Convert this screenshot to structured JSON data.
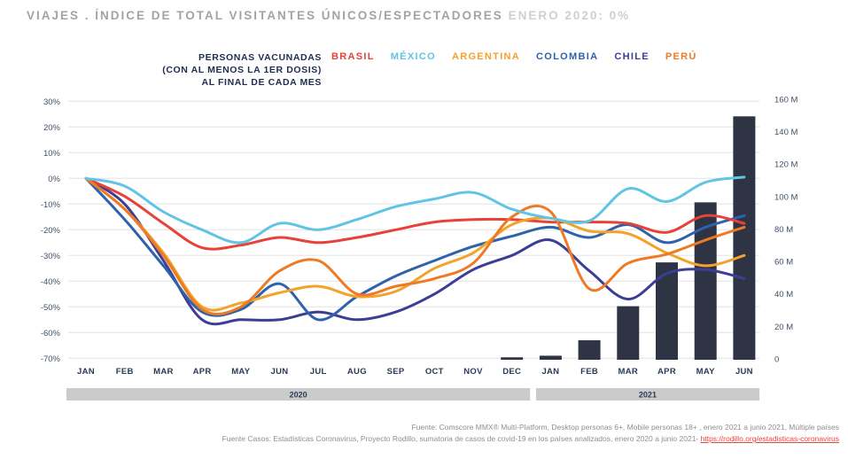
{
  "title": {
    "main": "VIAJES . ÍNDICE DE TOTAL VISITANTES ÚNICOS/ESPECTADORES",
    "suffix": "ENERO 2020: 0%"
  },
  "legend": {
    "vaccinated_label_lines": [
      "PERSONAS VACUNADAS",
      "(CON AL MENOS LA 1ER DOSIS)",
      "AL FINAL DE CADA MES"
    ],
    "countries": [
      {
        "label": "BRASIL",
        "color": "#e6423a"
      },
      {
        "label": "MÉXICO",
        "color": "#61c4e3"
      },
      {
        "label": "ARGENTINA",
        "color": "#f3a32b"
      },
      {
        "label": "COLOMBIA",
        "color": "#2f62aa"
      },
      {
        "label": "CHILE",
        "color": "#3c3e96"
      },
      {
        "label": "PERÚ",
        "color": "#ee7a24"
      }
    ]
  },
  "chart_data": {
    "type": "line+bar",
    "x_labels": [
      "JAN",
      "FEB",
      "MAR",
      "APR",
      "MAY",
      "JUN",
      "JUL",
      "AUG",
      "SEP",
      "OCT",
      "NOV",
      "DEC",
      "JAN",
      "FEB",
      "MAR",
      "APR",
      "MAY",
      "JUN"
    ],
    "year_groups": [
      {
        "label": "2020",
        "start_index": 0,
        "end_index": 11
      },
      {
        "label": "2021",
        "start_index": 12,
        "end_index": 17
      }
    ],
    "left_axis": {
      "title": "Índice de visitantes (%)",
      "ticks": [
        "30%",
        "20%",
        "10%",
        "0%",
        "-10%",
        "-20%",
        "-30%",
        "-40%",
        "-50%",
        "-60%",
        "-70%"
      ],
      "max": 30,
      "min": -70,
      "grid": true
    },
    "right_axis": {
      "title": "Personas vacunadas",
      "ticks": [
        "160 M",
        "140 M",
        "120 M",
        "100 M",
        "80 M",
        "60 M",
        "40 M",
        "20 M",
        "0"
      ],
      "max": 160,
      "min": 0
    },
    "series": [
      {
        "name": "BRASIL",
        "color": "#e6423a",
        "values": [
          0,
          -7,
          -17.5,
          -27,
          -26,
          -23,
          -25,
          -23,
          -20,
          -17,
          -16,
          -16,
          -17,
          -17,
          -17.5,
          -21,
          -14.5,
          -17.5
        ]
      },
      {
        "name": "MÉXICO",
        "color": "#61c4e3",
        "values": [
          0,
          -3,
          -13,
          -20,
          -25,
          -17.5,
          -20,
          -16,
          -11,
          -8,
          -5.5,
          -12,
          -15.5,
          -16.5,
          -4,
          -9,
          -1.5,
          0.5
        ]
      },
      {
        "name": "ARGENTINA",
        "color": "#f3a32b",
        "values": [
          0,
          -12,
          -29,
          -50,
          -48.5,
          -44.5,
          -42,
          -46,
          -44,
          -35,
          -29,
          -18,
          -15.5,
          -20.5,
          -21.5,
          -29,
          -34,
          -30
        ]
      },
      {
        "name": "COLOMBIA",
        "color": "#2f62aa",
        "values": [
          0,
          -16,
          -34,
          -52,
          -51,
          -41,
          -55,
          -46,
          -38,
          -32,
          -26.5,
          -22.5,
          -19,
          -23,
          -18,
          -25,
          -19,
          -14.5
        ]
      },
      {
        "name": "CHILE",
        "color": "#3c3e96",
        "values": [
          0,
          -10,
          -32,
          -55,
          -55,
          -55,
          -52,
          -55,
          -52,
          -45,
          -35.5,
          -30,
          -24,
          -36,
          -47,
          -37,
          -35.5,
          -39
        ]
      },
      {
        "name": "PERÚ",
        "color": "#ee7a24",
        "values": [
          0,
          -12,
          -30,
          -51,
          -50,
          -36,
          -32,
          -45,
          -42,
          -39,
          -33,
          -15,
          -13,
          -43,
          -33,
          -29.5,
          -24,
          -19
        ]
      }
    ],
    "draw_order": [
      "CHILE",
      "COLOMBIA",
      "BRASIL",
      "ARGENTINA",
      "PERÚ",
      "MÉXICO"
    ],
    "bars": {
      "name": "Personas vacunadas (millones)",
      "color": "#2e3444",
      "unit": "M",
      "values": [
        {
          "month": "DEC",
          "year": "2020",
          "month_index": 11,
          "value_m": 1.5
        },
        {
          "month": "JAN",
          "year": "2021",
          "month_index": 12,
          "value_m": 2.5
        },
        {
          "month": "FEB",
          "year": "2021",
          "month_index": 13,
          "value_m": 12
        },
        {
          "month": "MAR",
          "year": "2021",
          "month_index": 14,
          "value_m": 33
        },
        {
          "month": "APR",
          "year": "2021",
          "month_index": 15,
          "value_m": 60
        },
        {
          "month": "MAY",
          "year": "2021",
          "month_index": 16,
          "value_m": 97
        },
        {
          "month": "JUN",
          "year": "2021",
          "month_index": 17,
          "value_m": 150
        }
      ]
    }
  },
  "footer": {
    "line1": "Fuente: Comscore MMX® Multi-Platform, Desktop personas 6+, Mobile personas 18+ , enero 2021 a junio 2021, Múltiple países",
    "line2_prefix": "Fuente Casos: Estadísticas Coronavirus, Proyecto Rodillo, sumatoria de casos de covid-19 en los países analizados, enero 2020 a junio 2021- ",
    "line2_link": "https://rodillo.org/estadisticas-coronavirus"
  }
}
